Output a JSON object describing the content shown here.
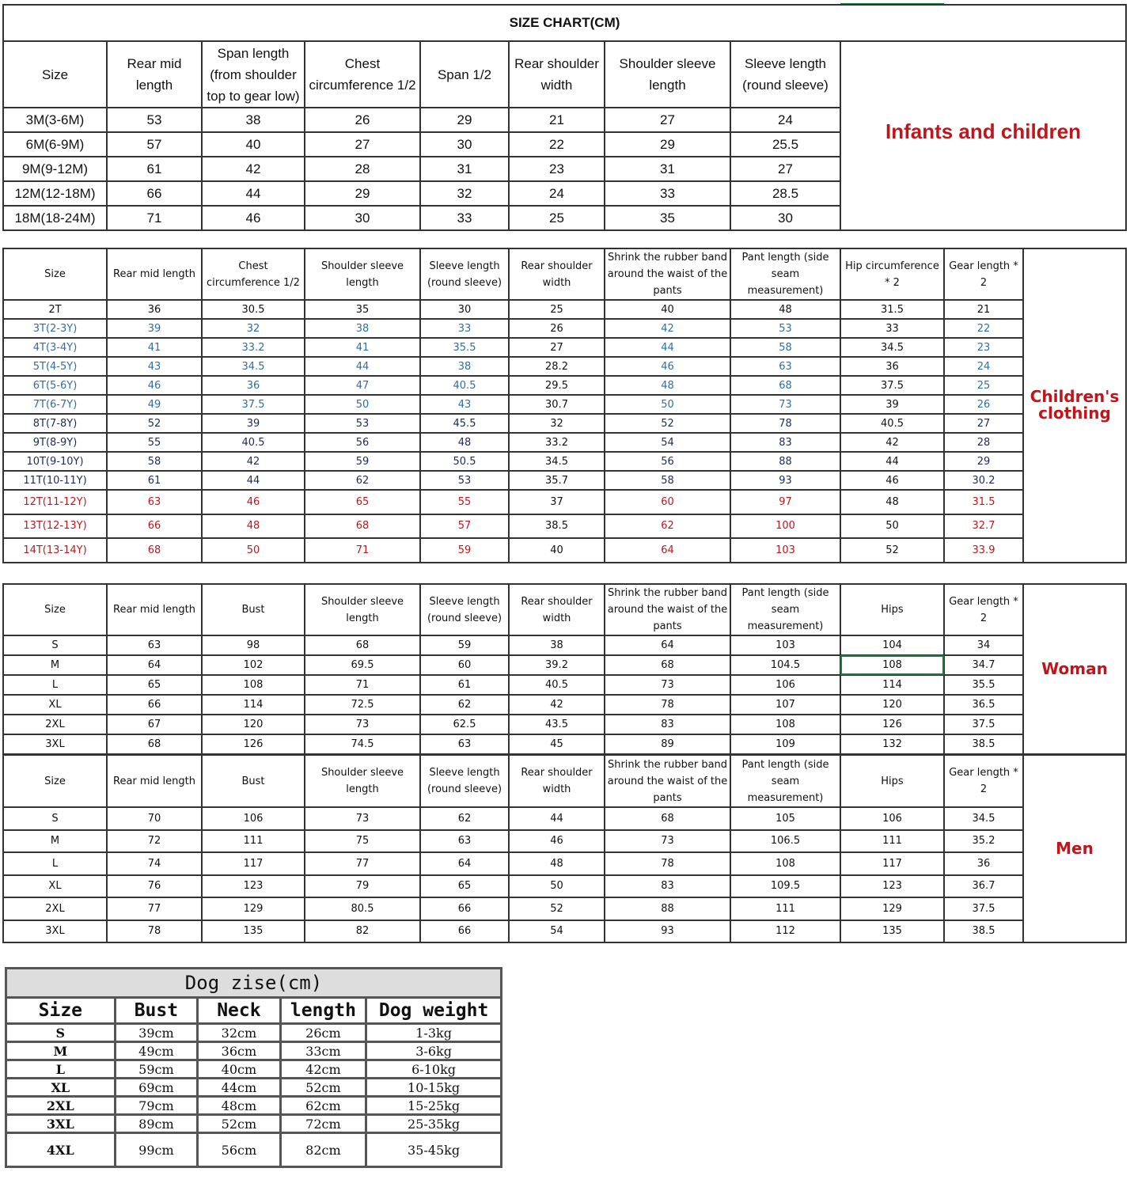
{
  "title": "SIZE CHART(CM)",
  "colors": {
    "blue": "#2e6ea6",
    "navy": "#1b2b5c",
    "red": "#c0161b",
    "black": "#111111",
    "selection": "#1e7b3c"
  },
  "infants": {
    "label": "Infants and children",
    "headers": [
      "Size",
      "Rear mid length",
      "Span length (from shoulder top to gear low)",
      "Chest circumference 1/2",
      "Span 1/2",
      "Rear shoulder width",
      "Shoulder sleeve length",
      "Sleeve length (round sleeve)"
    ],
    "rows": [
      [
        "3M(3-6M)",
        "53",
        "38",
        "26",
        "29",
        "21",
        "27",
        "24"
      ],
      [
        "6M(6-9M)",
        "57",
        "40",
        "27",
        "30",
        "22",
        "29",
        "25.5"
      ],
      [
        "9M(9-12M)",
        "61",
        "42",
        "28",
        "31",
        "23",
        "31",
        "27"
      ],
      [
        "12M(12-18M)",
        "66",
        "44",
        "29",
        "32",
        "24",
        "33",
        "28.5"
      ],
      [
        "18M(18-24M)",
        "71",
        "46",
        "30",
        "33",
        "25",
        "35",
        "30"
      ]
    ]
  },
  "children": {
    "label": "Children's clothing",
    "headers": [
      "Size",
      "Rear mid length",
      "Chest circumference 1/2",
      "Shoulder sleeve length",
      "Sleeve length (round sleeve)",
      "Rear shoulder width",
      "Shrink the rubber band around the waist of the pants",
      "Pant length (side seam measurement)",
      "Hip circumference * 2",
      "Gear length * 2"
    ],
    "tones": [
      "black",
      "blue",
      "blue",
      "blue",
      "blue",
      "blue",
      "navy",
      "navy",
      "navy",
      "navy",
      "red",
      "red",
      "red"
    ],
    "rows": [
      [
        "2T",
        "36",
        "30.5",
        "35",
        "30",
        "25",
        "40",
        "48",
        "31.5",
        "21"
      ],
      [
        "3T(2-3Y)",
        "39",
        "32",
        "38",
        "33",
        "26",
        "42",
        "53",
        "33",
        "22"
      ],
      [
        "4T(3-4Y)",
        "41",
        "33.2",
        "41",
        "35.5",
        "27",
        "44",
        "58",
        "34.5",
        "23"
      ],
      [
        "5T(4-5Y)",
        "43",
        "34.5",
        "44",
        "38",
        "28.2",
        "46",
        "63",
        "36",
        "24"
      ],
      [
        "6T(5-6Y)",
        "46",
        "36",
        "47",
        "40.5",
        "29.5",
        "48",
        "68",
        "37.5",
        "25"
      ],
      [
        "7T(6-7Y)",
        "49",
        "37.5",
        "50",
        "43",
        "30.7",
        "50",
        "73",
        "39",
        "26"
      ],
      [
        "8T(7-8Y)",
        "52",
        "39",
        "53",
        "45.5",
        "32",
        "52",
        "78",
        "40.5",
        "27"
      ],
      [
        "9T(8-9Y)",
        "55",
        "40.5",
        "56",
        "48",
        "33.2",
        "54",
        "83",
        "42",
        "28"
      ],
      [
        "10T(9-10Y)",
        "58",
        "42",
        "59",
        "50.5",
        "34.5",
        "56",
        "88",
        "44",
        "29"
      ],
      [
        "11T(10-11Y)",
        "61",
        "44",
        "62",
        "53",
        "35.7",
        "58",
        "93",
        "46",
        "30.2"
      ],
      [
        "12T(11-12Y)",
        "63",
        "46",
        "65",
        "55",
        "37",
        "60",
        "97",
        "48",
        "31.5"
      ],
      [
        "13T(12-13Y)",
        "66",
        "48",
        "68",
        "57",
        "38.5",
        "62",
        "100",
        "50",
        "32.7"
      ],
      [
        "14T(13-14Y)",
        "68",
        "50",
        "71",
        "59",
        "40",
        "64",
        "103",
        "52",
        "33.9"
      ]
    ]
  },
  "woman": {
    "label": "Woman",
    "headers": [
      "Size",
      "Rear mid length",
      "Bust",
      "Shoulder sleeve length",
      "Sleeve length (round sleeve)",
      "Rear shoulder width",
      "Shrink the rubber band around the waist of the pants",
      "Pant length (side seam measurement)",
      "Hips",
      "Gear length * 2"
    ],
    "rows": [
      [
        "S",
        "63",
        "98",
        "68",
        "59",
        "38",
        "64",
        "103",
        "104",
        "34"
      ],
      [
        "M",
        "64",
        "102",
        "69.5",
        "60",
        "39.2",
        "68",
        "104.5",
        "108",
        "34.7"
      ],
      [
        "L",
        "65",
        "108",
        "71",
        "61",
        "40.5",
        "73",
        "106",
        "114",
        "35.5"
      ],
      [
        "XL",
        "66",
        "114",
        "72.5",
        "62",
        "42",
        "78",
        "107",
        "120",
        "36.5"
      ],
      [
        "2XL",
        "67",
        "120",
        "73",
        "62.5",
        "43.5",
        "83",
        "108",
        "126",
        "37.5"
      ],
      [
        "3XL",
        "68",
        "126",
        "74.5",
        "63",
        "45",
        "89",
        "109",
        "132",
        "38.5"
      ]
    ]
  },
  "men": {
    "label": "Men",
    "headers": [
      "Size",
      "Rear mid length",
      "Bust",
      "Shoulder sleeve length",
      "Sleeve length (round sleeve)",
      "Rear shoulder width",
      "Shrink the rubber band around the waist of the pants",
      "Pant length (side seam measurement)",
      "Hips",
      "Gear length * 2"
    ],
    "rows": [
      [
        "S",
        "70",
        "106",
        "73",
        "62",
        "44",
        "68",
        "105",
        "106",
        "34.5"
      ],
      [
        "M",
        "72",
        "111",
        "75",
        "63",
        "46",
        "73",
        "106.5",
        "111",
        "35.2"
      ],
      [
        "L",
        "74",
        "117",
        "77",
        "64",
        "48",
        "78",
        "108",
        "117",
        "36"
      ],
      [
        "XL",
        "76",
        "123",
        "79",
        "65",
        "50",
        "83",
        "109.5",
        "123",
        "36.7"
      ],
      [
        "2XL",
        "77",
        "129",
        "80.5",
        "66",
        "52",
        "88",
        "111",
        "129",
        "37.5"
      ],
      [
        "3XL",
        "78",
        "135",
        "82",
        "66",
        "54",
        "93",
        "112",
        "135",
        "38.5"
      ]
    ]
  },
  "dog": {
    "title": "Dog zise(cm)",
    "headers": [
      "Size",
      "Bust",
      "Neck",
      "length",
      "Dog weight"
    ],
    "rows": [
      [
        "S",
        "39cm",
        "32cm",
        "26cm",
        "1-3kg"
      ],
      [
        "M",
        "49cm",
        "36cm",
        "33cm",
        "3-6kg"
      ],
      [
        "L",
        "59cm",
        "40cm",
        "42cm",
        "6-10kg"
      ],
      [
        "XL",
        "69cm",
        "44cm",
        "52cm",
        "10-15kg"
      ],
      [
        "2XL",
        "79cm",
        "48cm",
        "62cm",
        "15-25kg"
      ],
      [
        "3XL",
        "89cm",
        "52cm",
        "72cm",
        "25-35kg"
      ],
      [
        "4XL",
        "99cm",
        "56cm",
        "82cm",
        "35-45kg"
      ]
    ]
  }
}
